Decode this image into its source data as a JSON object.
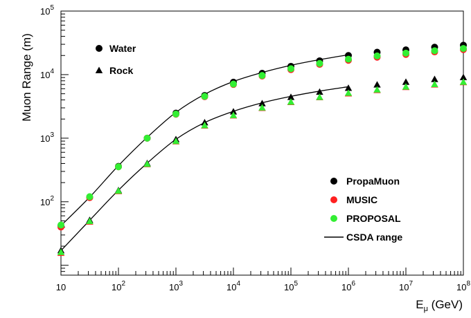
{
  "chart_data": {
    "type": "scatter",
    "xlabel_base": "E",
    "xlabel_sub": "μ",
    "xlabel_unit": " (GeV)",
    "ylabel": "Muon Range (m)",
    "xscale": "log",
    "yscale": "log",
    "xlim": [
      10,
      100000000
    ],
    "ylim": [
      7,
      100000
    ],
    "grid": false,
    "x_ticks": [
      {
        "base": "10",
        "exp": ""
      },
      {
        "base": "10",
        "exp": "2"
      },
      {
        "base": "10",
        "exp": "3"
      },
      {
        "base": "10",
        "exp": "4"
      },
      {
        "base": "10",
        "exp": "5"
      },
      {
        "base": "10",
        "exp": "6"
      },
      {
        "base": "10",
        "exp": "7"
      },
      {
        "base": "10",
        "exp": "8"
      }
    ],
    "y_ticks": [
      {
        "base": "10",
        "exp": "2"
      },
      {
        "base": "10",
        "exp": "3"
      },
      {
        "base": "10",
        "exp": "4"
      },
      {
        "base": "10",
        "exp": "5"
      }
    ],
    "x": [
      10,
      31.6,
      100,
      316,
      1000,
      3160,
      10000,
      31600,
      100000,
      316000,
      1000000,
      3160000,
      10000000,
      31600000,
      100000000
    ],
    "markers_legend": [
      {
        "label": "Water",
        "shape": "circle"
      },
      {
        "label": "Rock",
        "shape": "triangle"
      }
    ],
    "legend": [
      {
        "label": "PropaMuon",
        "color": "#000000",
        "shape": "circle"
      },
      {
        "label": "MUSIC",
        "color": "#ff2020",
        "shape": "circle"
      },
      {
        "label": "PROPOSAL",
        "color": "#33ee33",
        "shape": "circle"
      },
      {
        "label": "CSDA range",
        "color": "#000000",
        "shape": "line"
      }
    ],
    "series": [
      {
        "name": "PropaMuon",
        "material": "Water",
        "color": "#000000",
        "values": [
          42,
          118,
          360,
          1000,
          2480,
          4700,
          7600,
          10500,
          13500,
          16500,
          20000,
          22500,
          24500,
          27000,
          29000
        ]
      },
      {
        "name": "MUSIC",
        "material": "Water",
        "color": "#ff2020",
        "values": [
          40,
          116,
          355,
          1000,
          2380,
          4500,
          7000,
          9500,
          12000,
          14500,
          16800,
          18800,
          20800,
          22800,
          24800
        ]
      },
      {
        "name": "PROPOSAL",
        "material": "Water",
        "color": "#33ee33",
        "values": [
          43,
          120,
          355,
          1000,
          2400,
          4550,
          7100,
          9700,
          12400,
          15000,
          17500,
          19700,
          21800,
          23800,
          25800
        ]
      },
      {
        "name": "PropaMuon",
        "material": "Rock",
        "color": "#000000",
        "values": [
          17,
          51,
          150,
          400,
          950,
          1750,
          2600,
          3500,
          4400,
          5300,
          6100,
          6900,
          7600,
          8400,
          9000
        ]
      },
      {
        "name": "MUSIC",
        "material": "Rock",
        "color": "#ff2020",
        "values": [
          15.5,
          48,
          145,
          385,
          880,
          1560,
          2250,
          2950,
          3650,
          4350,
          5000,
          5650,
          6300,
          6900,
          7500
        ]
      },
      {
        "name": "PROPOSAL",
        "material": "Rock",
        "color": "#33ee33",
        "values": [
          16,
          49,
          147,
          390,
          890,
          1580,
          2280,
          3000,
          3700,
          4400,
          5100,
          5750,
          6400,
          7000,
          7600
        ]
      },
      {
        "name": "CSDA range",
        "material": "Water",
        "color": "#000000",
        "line": true,
        "x": [
          10,
          31.6,
          100,
          316,
          1000,
          3160,
          10000,
          31600,
          100000,
          316000,
          1000000
        ],
        "values": [
          42,
          118,
          370,
          1030,
          2550,
          4900,
          7800,
          10800,
          14000,
          17200,
          20500
        ]
      },
      {
        "name": "CSDA range",
        "material": "Rock",
        "color": "#000000",
        "line": true,
        "x": [
          10,
          31.6,
          100,
          316,
          1000,
          3160,
          10000,
          31600,
          100000,
          316000,
          1000000
        ],
        "values": [
          17,
          51,
          152,
          405,
          960,
          1760,
          2650,
          3600,
          4550,
          5500,
          6450
        ]
      }
    ]
  }
}
